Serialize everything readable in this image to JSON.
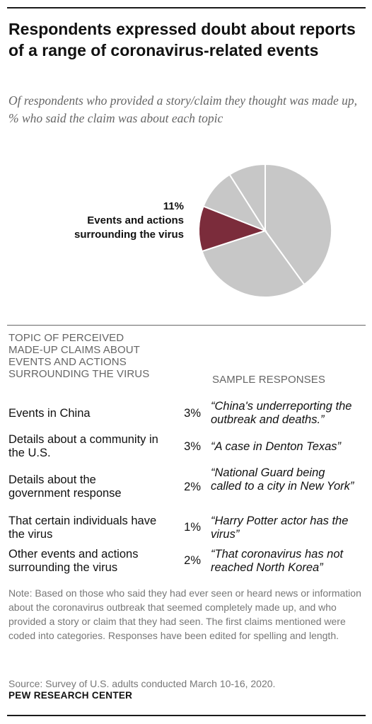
{
  "title": "Respondents expressed doubt about reports of a range of coronavirus-related events",
  "subtitle": "Of respondents who provided a story/claim they thought was made up, % who said the claim was about each topic",
  "chart_data": {
    "type": "pie",
    "highlight": {
      "value_label": "11%",
      "label": "Events and actions surrounding the virus",
      "value": 11,
      "color": "#7b2c3b"
    },
    "slices": [
      {
        "value": 40,
        "color": "#c7c7c7"
      },
      {
        "value": 30,
        "color": "#c7c7c7"
      },
      {
        "value": 11,
        "color": "#7b2c3b"
      },
      {
        "value": 10,
        "color": "#c7c7c7"
      },
      {
        "value": 9,
        "color": "#c7c7c7"
      }
    ],
    "separator_color": "#ffffff"
  },
  "table": {
    "col_topic": "TOPIC OF PERCEIVED MADE-UP CLAIMS ABOUT EVENTS AND ACTIONS SURROUNDING THE VIRUS",
    "col_topic_lines": [
      "TOPIC OF PERCEIVED",
      "MADE-UP CLAIMS ABOUT",
      "EVENTS AND ACTIONS",
      "SURROUNDING THE VIRUS"
    ],
    "col_sample": "SAMPLE RESPONSES",
    "rows": [
      {
        "topic": "Events in China",
        "pct": "3%",
        "quote": "“China's underreporting the outbreak and deaths.”"
      },
      {
        "topic": "Details about a community in the U.S.",
        "pct": "3%",
        "quote": "“A case in Denton Texas”"
      },
      {
        "topic": "Details about the government response",
        "pct": "2%",
        "quote": "“National Guard being called to a city in New York”"
      },
      {
        "topic": "That certain individuals have the virus",
        "pct": "1%",
        "quote": "“Harry Potter actor has the virus”"
      },
      {
        "topic": "Other events and actions surrounding the virus",
        "pct": "2%",
        "quote": "“That coronavirus has not reached North Korea”"
      }
    ]
  },
  "note": "Note: Based on those who said they had ever seen or heard news or information about the coronavirus outbreak that seemed completely made up, and who provided a story or claim that they had seen. The first claims mentioned were coded into categories. Responses have been edited for spelling and length.",
  "source": "Source: Survey of U.S. adults conducted March 10-16, 2020.",
  "brand": "PEW RESEARCH CENTER"
}
